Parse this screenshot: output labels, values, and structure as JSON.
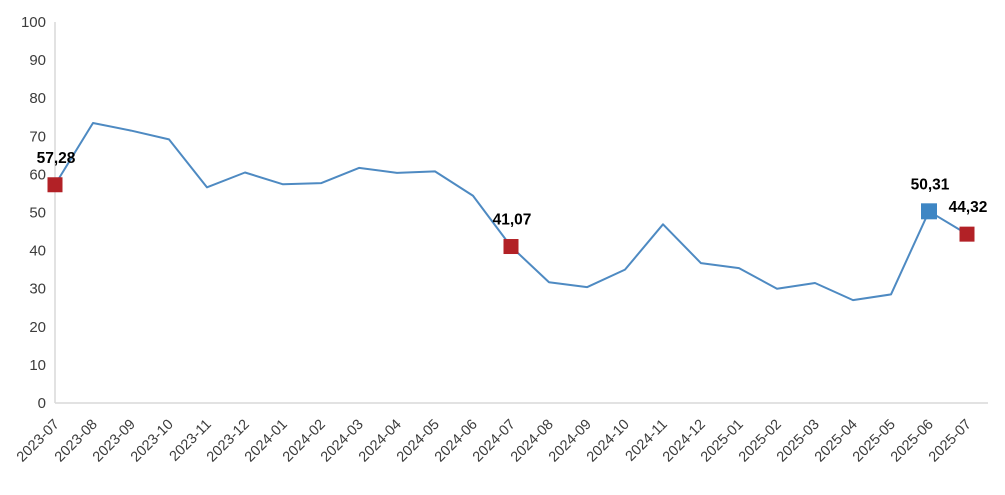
{
  "chart_data": {
    "type": "line",
    "title": "",
    "xlabel": "",
    "ylabel": "",
    "categories": [
      "2023-07",
      "2023-08",
      "2023-09",
      "2023-10",
      "2023-11",
      "2023-12",
      "2024-01",
      "2024-02",
      "2024-03",
      "2024-04",
      "2024-05",
      "2024-06",
      "2024-07",
      "2024-08",
      "2024-09",
      "2024-10",
      "2024-11",
      "2024-12",
      "2025-01",
      "2025-02",
      "2025-03",
      "2025-04",
      "2025-05",
      "2025-06",
      "2025-07"
    ],
    "values": [
      57.28,
      73.5,
      71.5,
      69.2,
      56.6,
      60.5,
      57.4,
      57.7,
      61.7,
      60.4,
      60.8,
      54.4,
      41.07,
      31.7,
      30.4,
      35.0,
      46.9,
      36.7,
      35.4,
      30.0,
      31.5,
      27.0,
      28.5,
      50.31,
      44.32
    ],
    "ylim": [
      0,
      100
    ],
    "ytick_step": 10,
    "yticks": [
      0,
      10,
      20,
      30,
      40,
      50,
      60,
      70,
      80,
      90,
      100
    ],
    "grid": "off",
    "legend": "none",
    "highlights": [
      {
        "index": 0,
        "category": "2023-07",
        "value": 57.28,
        "label": "57,28",
        "color": "#b22126",
        "marker": "square",
        "marker_size": 15
      },
      {
        "index": 12,
        "category": "2024-07",
        "value": 41.07,
        "label": "41,07",
        "color": "#b22126",
        "marker": "square",
        "marker_size": 15
      },
      {
        "index": 23,
        "category": "2025-06",
        "value": 50.31,
        "label": "50,31",
        "color": "#3e86c4",
        "marker": "square",
        "marker_size": 16
      },
      {
        "index": 24,
        "category": "2025-07",
        "value": 44.32,
        "label": "44,32",
        "color": "#b22126",
        "marker": "square",
        "marker_size": 15
      }
    ],
    "colors": {
      "line": "#4e8ac2",
      "axis_line": "#d9d9d9",
      "tick_text": "#3c3c3c",
      "value_label": "#000000",
      "background": "#ffffff"
    }
  }
}
